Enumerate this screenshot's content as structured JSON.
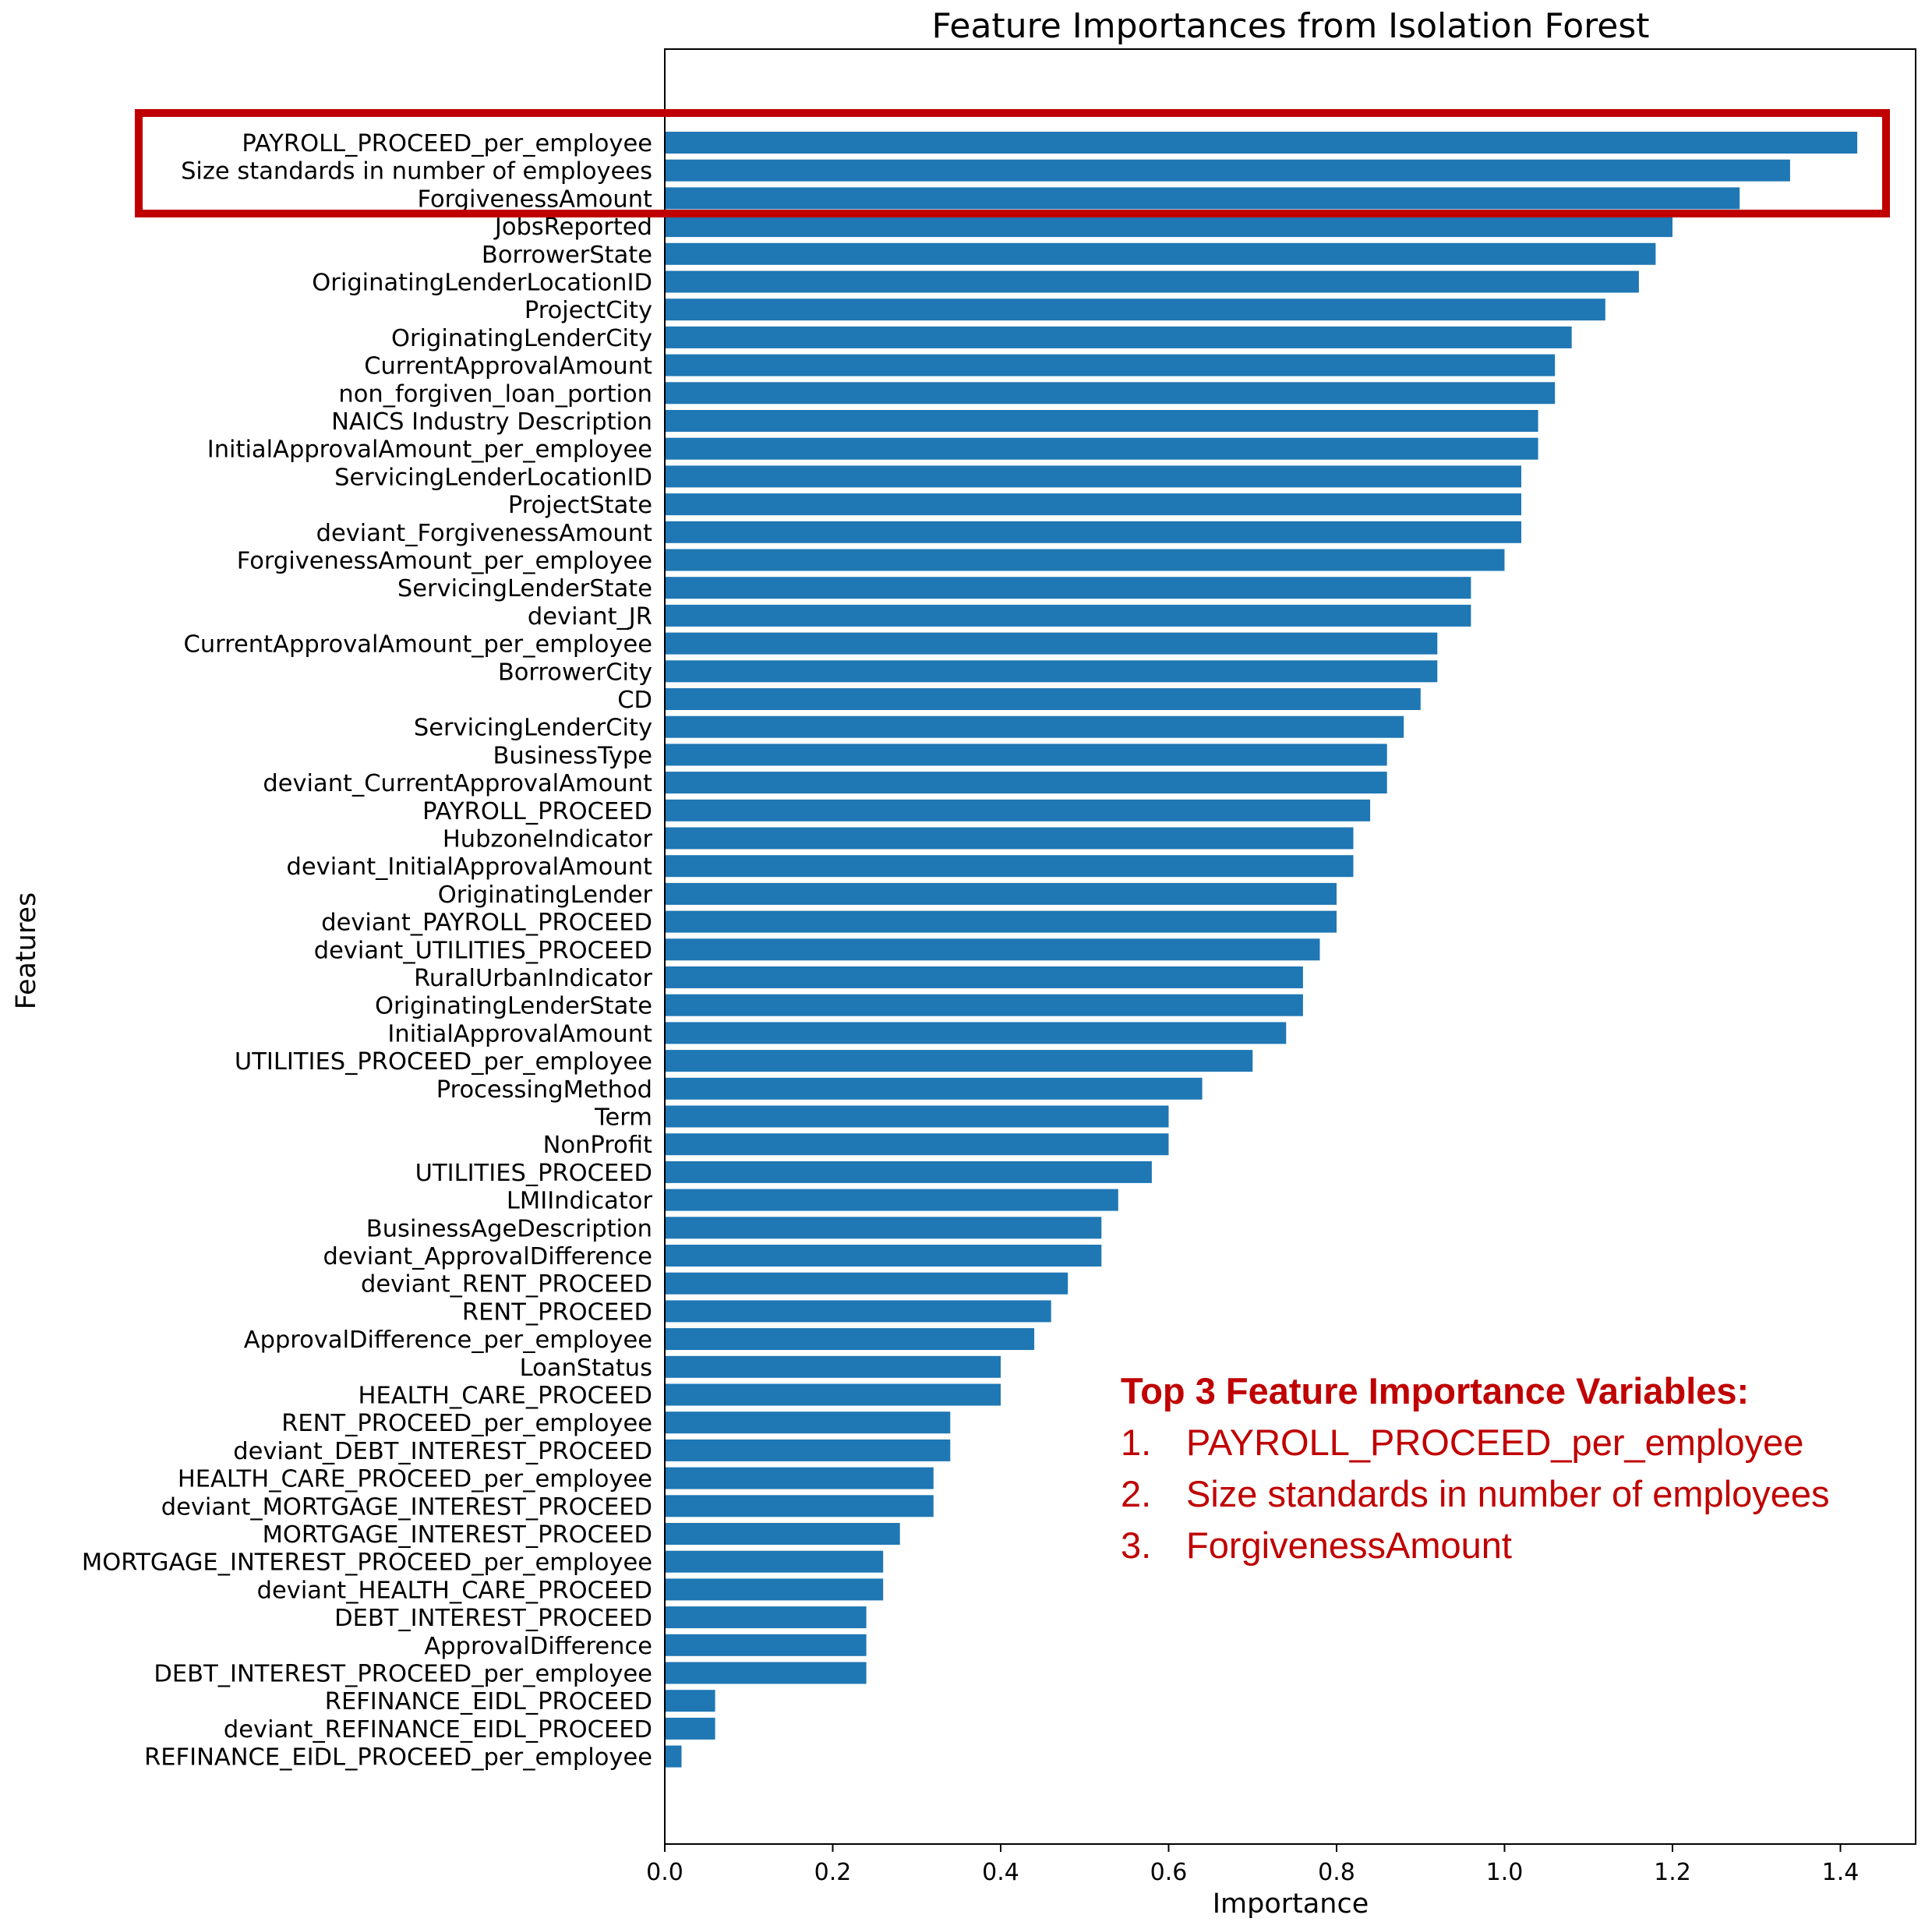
{
  "chart_data": {
    "type": "bar",
    "orientation": "horizontal",
    "title": "Feature Importances from Isolation Forest",
    "xlabel": "Importance",
    "ylabel": "Features",
    "xlim": [
      0,
      1.5
    ],
    "xticks": [
      "0.0",
      "0.2",
      "0.4",
      "0.6",
      "0.8",
      "1.0",
      "1.2",
      "1.4"
    ],
    "grid": false,
    "bar_color": "#1f77b4",
    "categories": [
      "PAYROLL_PROCEED_per_employee",
      "Size standards in number of employees",
      "ForgivenessAmount",
      "JobsReported",
      "BorrowerState",
      "OriginatingLenderLocationID",
      "ProjectCity",
      "OriginatingLenderCity",
      "CurrentApprovalAmount",
      "non_forgiven_loan_portion",
      "NAICS Industry Description",
      "InitialApprovalAmount_per_employee",
      "ServicingLenderLocationID",
      "ProjectState",
      "deviant_ForgivenessAmount",
      "ForgivenessAmount_per_employee",
      "ServicingLenderState",
      "deviant_JR",
      "CurrentApprovalAmount_per_employee",
      "BorrowerCity",
      "CD",
      "ServicingLenderCity",
      "BusinessType",
      "deviant_CurrentApprovalAmount",
      "PAYROLL_PROCEED",
      "HubzoneIndicator",
      "deviant_InitialApprovalAmount",
      "OriginatingLender",
      "deviant_PAYROLL_PROCEED",
      "deviant_UTILITIES_PROCEED",
      "RuralUrbanIndicator",
      "OriginatingLenderState",
      "InitialApprovalAmount",
      "UTILITIES_PROCEED_per_employee",
      "ProcessingMethod",
      "Term",
      "NonProfit",
      "UTILITIES_PROCEED",
      "LMIIndicator",
      "BusinessAgeDescription",
      "deviant_ApprovalDifference",
      "deviant_RENT_PROCEED",
      "RENT_PROCEED",
      "ApprovalDifference_per_employee",
      "LoanStatus",
      "HEALTH_CARE_PROCEED",
      "RENT_PROCEED_per_employee",
      "deviant_DEBT_INTEREST_PROCEED",
      "HEALTH_CARE_PROCEED_per_employee",
      "deviant_MORTGAGE_INTEREST_PROCEED",
      "MORTGAGE_INTEREST_PROCEED",
      "MORTGAGE_INTEREST_PROCEED_per_employee",
      "deviant_HEALTH_CARE_PROCEED",
      "DEBT_INTEREST_PROCEED",
      "ApprovalDifference",
      "DEBT_INTEREST_PROCEED_per_employee",
      "REFINANCE_EIDL_PROCEED",
      "deviant_REFINANCE_EIDL_PROCEED",
      "REFINANCE_EIDL_PROCEED_per_employee"
    ],
    "values": [
      1.42,
      1.34,
      1.28,
      1.2,
      1.18,
      1.16,
      1.12,
      1.08,
      1.06,
      1.06,
      1.04,
      1.04,
      1.02,
      1.02,
      1.02,
      1.0,
      0.96,
      0.96,
      0.92,
      0.92,
      0.9,
      0.88,
      0.86,
      0.86,
      0.84,
      0.82,
      0.82,
      0.8,
      0.8,
      0.78,
      0.76,
      0.76,
      0.74,
      0.7,
      0.64,
      0.6,
      0.6,
      0.58,
      0.54,
      0.52,
      0.52,
      0.48,
      0.46,
      0.44,
      0.4,
      0.4,
      0.34,
      0.34,
      0.32,
      0.32,
      0.28,
      0.26,
      0.26,
      0.24,
      0.24,
      0.24,
      0.06,
      0.06,
      0.02
    ],
    "highlight": {
      "color": "#c00000",
      "category_count": 3
    }
  },
  "callout": {
    "title": "Top 3 Feature Importance Variables:",
    "items": [
      {
        "num": "1.",
        "text": "PAYROLL_PROCEED_per_employee"
      },
      {
        "num": "2.",
        "text": "Size standards in number of employees"
      },
      {
        "num": "3.",
        "text": "ForgivenessAmount"
      }
    ]
  }
}
